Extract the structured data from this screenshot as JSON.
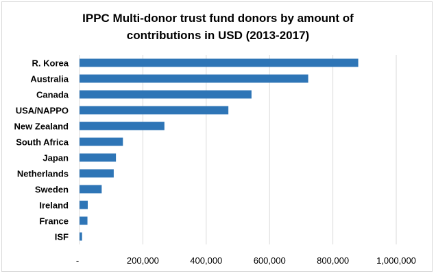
{
  "chart_data": {
    "type": "bar",
    "orientation": "horizontal",
    "title_lines": [
      "IPPC Multi-donor trust fund donors by amount of",
      "contributions in USD (2013-2017)"
    ],
    "categories": [
      "R. Korea",
      "Australia",
      "Canada",
      "USA/NAPPO",
      "New Zealand",
      "South Africa",
      "Japan",
      "Netherlands",
      "Sweden",
      "Ireland",
      "France",
      "ISF"
    ],
    "values": [
      880000,
      722000,
      543000,
      470000,
      268000,
      137000,
      115000,
      108000,
      70000,
      26000,
      25000,
      8000
    ],
    "xlim": [
      0,
      1000000
    ],
    "x_ticks": [
      "-",
      "200,000",
      "400,000",
      "600,000",
      "800,000",
      "1,000,000"
    ],
    "x_tick_values": [
      0,
      200000,
      400000,
      600000,
      800000,
      1000000
    ],
    "grid": true,
    "legend": "none",
    "bar_color": "#2E75B6",
    "grid_color": "#d9d9d9"
  }
}
